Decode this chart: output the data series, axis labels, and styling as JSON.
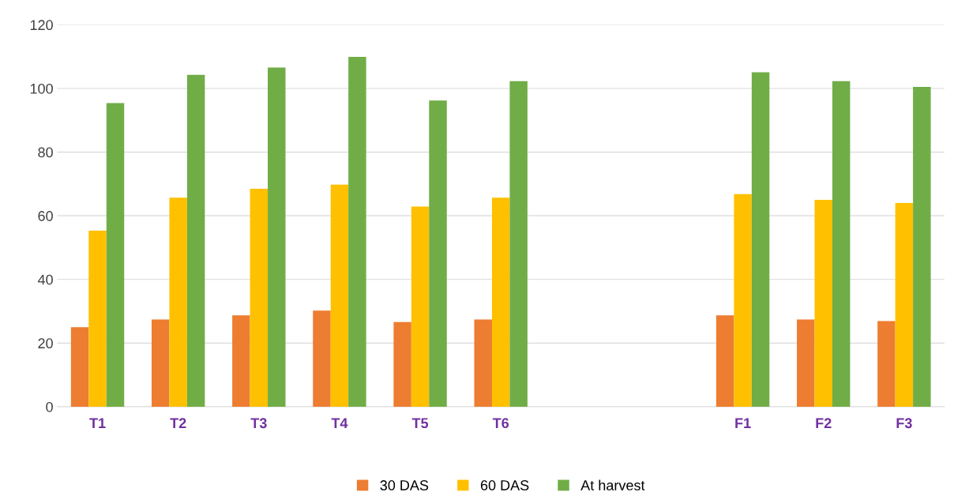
{
  "chart_data": {
    "type": "bar",
    "categories": [
      "T1",
      "T2",
      "T3",
      "T4",
      "T5",
      "T6",
      null,
      null,
      "F1",
      "F2",
      "F3"
    ],
    "series": [
      {
        "name": "30 DAS",
        "color": "#ed7d31",
        "values": [
          25,
          27.4,
          28.7,
          30.2,
          26.6,
          27.4,
          null,
          null,
          28.7,
          27.4,
          26.9
        ]
      },
      {
        "name": "60 DAS",
        "color": "#ffc000",
        "values": [
          55.3,
          65.7,
          68.5,
          69.8,
          62.9,
          65.7,
          null,
          null,
          66.8,
          65,
          64
        ]
      },
      {
        "name": "At harvest",
        "color": "#70ad47",
        "values": [
          95.4,
          104.3,
          106.6,
          109.9,
          96.2,
          102.3,
          null,
          null,
          105.1,
          102.3,
          100.5
        ]
      }
    ],
    "ylim": [
      0,
      120
    ],
    "yticks": [
      0,
      20,
      40,
      60,
      80,
      100,
      120
    ],
    "grid": "y",
    "legend": "bottom"
  }
}
